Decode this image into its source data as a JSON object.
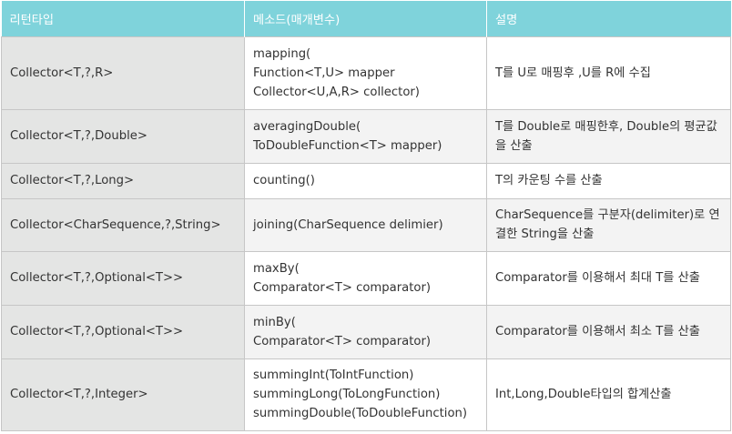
{
  "table": {
    "headers": [
      "리턴타입",
      "메소드(매개변수)",
      "설명"
    ],
    "rows": [
      {
        "return_type": "Collector<T,?,R>",
        "method_lines": [
          "mapping(",
          "Function<T,U> mapper",
          "Collector<U,A,R> collector)"
        ],
        "description": "T를 U로 매핑후 ,U를 R에 수집"
      },
      {
        "return_type": "Collector<T,?,Double>",
        "method_lines": [
          "averagingDouble(",
          "ToDoubleFunction<T> mapper)"
        ],
        "description": "T를 Double로 매핑한후, Double의 평균값을 산출"
      },
      {
        "return_type": "Collector<T,?,Long>",
        "method_lines": [
          "counting()"
        ],
        "description": "T의 카운팅 수를 산출"
      },
      {
        "return_type": "Collector<CharSequence,?,String>",
        "method_lines": [
          "joining(CharSequence delimier)"
        ],
        "description": "CharSequence를 구분자(delimiter)로 연결한 String을 산출"
      },
      {
        "return_type": "Collector<T,?,Optional<T>>",
        "method_lines": [
          "maxBy(",
          "Comparator<T> comparator)"
        ],
        "description": "Comparator를 이용해서 최대 T를 산출"
      },
      {
        "return_type": "Collector<T,?,Optional<T>>",
        "method_lines": [
          "minBy(",
          "Comparator<T> comparator)"
        ],
        "description": "Comparator를 이용해서 최소 T를 산출"
      },
      {
        "return_type": "Collector<T,?,Integer>",
        "method_lines": [
          "summingInt(ToIntFunction)",
          "summingLong(ToLongFunction)",
          "summingDouble(ToDoubleFunction)"
        ],
        "description": "Int,Long,Double타입의 합계산출"
      }
    ]
  }
}
